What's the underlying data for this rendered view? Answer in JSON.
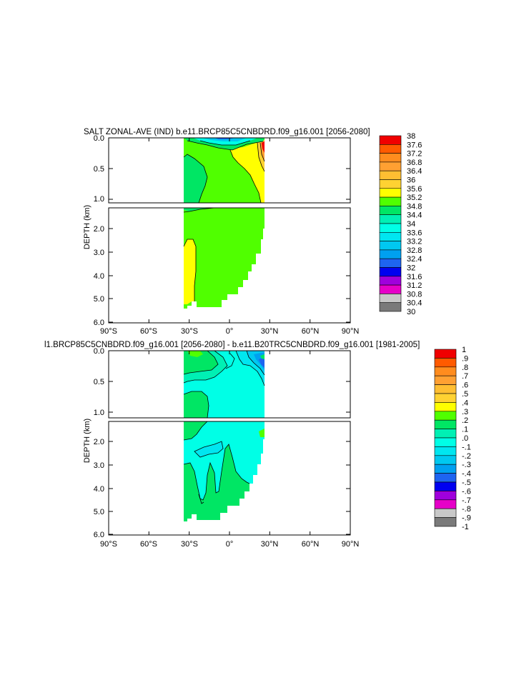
{
  "chart_data": [
    {
      "type": "heatmap",
      "title": "SALT ZONAL-AVE (IND) b.e11.BRCP85C5CNBDRD.f09_g16.001 [2056-2080]",
      "xlabel": "",
      "ylabel": "DEPTH (km)",
      "x_ticks": [
        "90°S",
        "60°S",
        "30°S",
        "0°",
        "30°N",
        "60°N",
        "90°N"
      ],
      "xlim": [
        -90,
        90
      ],
      "y_ticks_upper": [
        "0.0",
        "0.5",
        "1.0"
      ],
      "y_ticks_lower": [
        "2.0",
        "3.0",
        "4.0",
        "5.0",
        "6.0"
      ],
      "ylim_km": [
        0,
        6
      ],
      "grid": false,
      "legend_position": "right",
      "colorbar_levels": [
        "38",
        "37.6",
        "37.2",
        "36.8",
        "36.4",
        "36",
        "35.6",
        "35.2",
        "34.8",
        "34.4",
        "34",
        "33.6",
        "33.2",
        "32.8",
        "32.4",
        "32",
        "31.6",
        "31.2",
        "30.8",
        "30.4",
        "30"
      ],
      "dominant_field": "34.4 to 34.8 over most of the basin between ~34°S and ~25°N; 34.8-35.2 near 30°S at depth and north of ~10°N in the upper 1 km; 35.6-37.2 near 25°N surface; 32-34 fresh patch near 0-10°S surface"
    },
    {
      "type": "heatmap",
      "title": "l1.BRCP85C5CNBDRD.f09_g16.001 [2056-2080] - b.e11.B20TRC5CNBDRD.f09_g16.001 [1981-2005]",
      "xlabel": "",
      "ylabel": "DEPTH (km)",
      "x_ticks": [
        "90°S",
        "60°S",
        "30°S",
        "0°",
        "30°N",
        "60°N",
        "90°N"
      ],
      "xlim": [
        -90,
        90
      ],
      "y_ticks_upper": [
        "0.0",
        "0.5",
        "1.0"
      ],
      "y_ticks_lower": [
        "2.0",
        "3.0",
        "4.0",
        "5.0",
        "6.0"
      ],
      "ylim_km": [
        0,
        6
      ],
      "grid": false,
      "legend_position": "right",
      "colorbar_levels": [
        "1",
        ".9",
        ".8",
        ".7",
        ".6",
        ".5",
        ".4",
        ".3",
        ".2",
        ".1",
        ".0",
        "-.1",
        "-.2",
        "-.3",
        "-.4",
        "-.5",
        "-.6",
        "-.7",
        "-.8",
        "-.9",
        "-1"
      ],
      "dominant_field": "0.0 to -0.1 across most of the basin; 0.0 to 0.1 at depth south of ~15°S and near 30°S upper ocean; 0.1-0.2 near 25°N at 2 km; -0.2 to -0.6 near 20-25°N surface"
    }
  ],
  "colors": {
    "scale": [
      "#7a7a7a",
      "#c8c8c8",
      "#e600c8",
      "#a000dc",
      "#0000f0",
      "#1e64f0",
      "#00a0f0",
      "#00c8f0",
      "#00e6f0",
      "#00ffe6",
      "#00f0b4",
      "#00e664",
      "#50ff00",
      "#ffff00",
      "#ffd232",
      "#ffbe32",
      "#ffa032",
      "#ff8c1e",
      "#ff5a00",
      "#f00000",
      "#c80000"
    ]
  }
}
